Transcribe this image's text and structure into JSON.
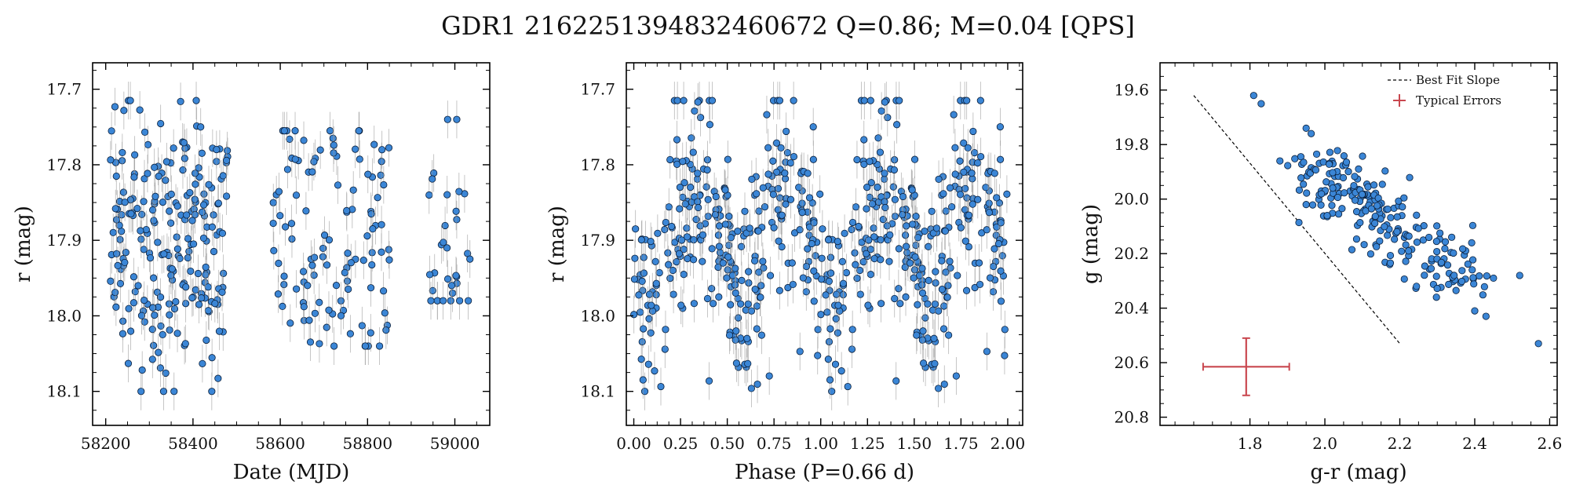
{
  "title": "GDR1 2162251394832460672  Q=0.86; M=0.04 [QPS]",
  "colors": {
    "point": "#3b86d6",
    "point_edge": "#0b1f3a",
    "errorbar": "#9a9a9a",
    "fit": "#000000",
    "typical": "#c9474f"
  },
  "chart_data": [
    {
      "type": "scatter",
      "xlabel": "Date (MJD)",
      "ylabel": "r (mag)",
      "xlim": [
        58170,
        59080
      ],
      "ylim": [
        18.145,
        17.665
      ],
      "y_inverted": true,
      "xticks": [
        58200,
        58400,
        58600,
        58800,
        59000
      ],
      "yticks": [
        17.7,
        17.8,
        17.9,
        18.0,
        18.1
      ],
      "ytick_labels": [
        "17.7",
        "17.8",
        "17.9",
        "18.0",
        "18.1"
      ],
      "typical_yerr": 0.025,
      "groups": [
        {
          "x_range": [
            58210,
            58480
          ],
          "n": 230,
          "y_range": [
            17.715,
            18.1
          ]
        },
        {
          "x_range": [
            58575,
            58850
          ],
          "n": 115,
          "y_range": [
            17.755,
            18.04
          ]
        },
        {
          "x_range": [
            58940,
            59040
          ],
          "n": 32,
          "y_range": [
            17.74,
            17.98
          ]
        }
      ]
    },
    {
      "type": "scatter",
      "xlabel": "Phase (P=0.66 d)",
      "ylabel": "r (mag)",
      "xlim": [
        -0.04,
        2.08
      ],
      "ylim": [
        18.145,
        17.665
      ],
      "y_inverted": true,
      "xticks": [
        0.0,
        0.25,
        0.5,
        0.75,
        1.0,
        1.25,
        1.5,
        1.75,
        2.0
      ],
      "xtick_labels": [
        "0.00",
        "0.25",
        "0.50",
        "0.75",
        "1.00",
        "1.25",
        "1.50",
        "1.75",
        "2.00"
      ],
      "yticks": [
        17.7,
        17.8,
        17.9,
        18.0,
        18.1
      ],
      "ytick_labels": [
        "17.7",
        "17.8",
        "17.9",
        "18.0",
        "18.1"
      ],
      "phase_period": 0.66,
      "n": 620,
      "y_range": [
        17.715,
        18.1
      ]
    },
    {
      "type": "scatter",
      "xlabel": "g-r (mag)",
      "ylabel": "g (mag)",
      "xlim": [
        1.56,
        2.62
      ],
      "ylim": [
        20.83,
        19.5
      ],
      "y_inverted": true,
      "xticks": [
        1.8,
        2.0,
        2.2,
        2.4,
        2.6
      ],
      "xtick_labels": [
        "1.8",
        "2.0",
        "2.2",
        "2.4",
        "2.6"
      ],
      "yticks": [
        19.6,
        19.8,
        20.0,
        20.2,
        20.4,
        20.6,
        20.8
      ],
      "ytick_labels": [
        "19.6",
        "19.8",
        "20.0",
        "20.2",
        "20.4",
        "20.6",
        "20.8"
      ],
      "best_fit": {
        "x": [
          1.65,
          2.2
        ],
        "y": [
          19.62,
          20.53
        ]
      },
      "typical_error": {
        "x": 1.79,
        "y": 20.615,
        "xerr": 0.115,
        "yerr": 0.105
      },
      "legend": [
        "Best Fit Slope",
        "Typical Errors"
      ],
      "legend_position": "top-right",
      "n": 230,
      "outliers": [
        {
          "x": 1.81,
          "y": 19.62
        },
        {
          "x": 1.83,
          "y": 19.65
        },
        {
          "x": 1.88,
          "y": 19.86
        },
        {
          "x": 2.57,
          "y": 20.53
        },
        {
          "x": 2.52,
          "y": 20.28
        },
        {
          "x": 2.45,
          "y": 20.29
        },
        {
          "x": 2.43,
          "y": 20.43
        },
        {
          "x": 2.4,
          "y": 20.41
        },
        {
          "x": 1.95,
          "y": 20.02
        },
        {
          "x": 1.95,
          "y": 19.74
        }
      ]
    }
  ]
}
